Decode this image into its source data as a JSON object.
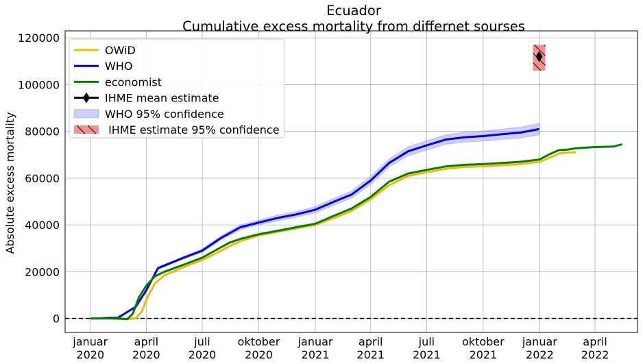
{
  "chart_data": {
    "type": "line",
    "title": "Ecuador",
    "subtitle": "Cumulative excess mortality from differnet sourses",
    "xlabel": "",
    "ylabel": "Absolute excess mortality",
    "xlim": [
      "2019-11-21",
      "2022-06-09"
    ],
    "ylim": [
      -6000,
      123000
    ],
    "grid": true,
    "legend_placement": "top-left",
    "x_ticks": [
      {
        "date": "2020-01-01",
        "line1": "januar",
        "line2": "2020"
      },
      {
        "date": "2020-04-01",
        "line1": "april",
        "line2": "2020"
      },
      {
        "date": "2020-07-01",
        "line1": "juli",
        "line2": "2020"
      },
      {
        "date": "2020-10-01",
        "line1": "oktober",
        "line2": "2020"
      },
      {
        "date": "2021-01-01",
        "line1": "januar",
        "line2": "2021"
      },
      {
        "date": "2021-04-01",
        "line1": "april",
        "line2": "2021"
      },
      {
        "date": "2021-07-01",
        "line1": "juli",
        "line2": "2021"
      },
      {
        "date": "2021-10-01",
        "line1": "oktober",
        "line2": "2021"
      },
      {
        "date": "2022-01-01",
        "line1": "januar",
        "line2": "2022"
      },
      {
        "date": "2022-04-01",
        "line1": "april",
        "line2": "2022"
      }
    ],
    "y_ticks": [
      0,
      20000,
      40000,
      60000,
      80000,
      100000,
      120000
    ],
    "zero_line": {
      "y": 0,
      "style": "dashed",
      "color": "#000000"
    },
    "series": [
      {
        "name": "OWiD",
        "color": "#f5b800",
        "points": [
          [
            "2020-01-01",
            0
          ],
          [
            "2020-01-30",
            0
          ],
          [
            "2020-02-20",
            -300
          ],
          [
            "2020-03-01",
            -300
          ],
          [
            "2020-03-15",
            100
          ],
          [
            "2020-03-25",
            3000
          ],
          [
            "2020-04-01",
            8000
          ],
          [
            "2020-04-15",
            15000
          ],
          [
            "2020-05-01",
            18500
          ],
          [
            "2020-06-01",
            22000
          ],
          [
            "2020-07-01",
            25000
          ],
          [
            "2020-08-01",
            29000
          ],
          [
            "2020-08-15",
            31000
          ],
          [
            "2020-09-01",
            33000
          ],
          [
            "2020-10-01",
            35500
          ],
          [
            "2020-11-01",
            37000
          ],
          [
            "2020-12-01",
            38500
          ],
          [
            "2021-01-01",
            40000
          ],
          [
            "2021-02-01",
            43000
          ],
          [
            "2021-03-01",
            46000
          ],
          [
            "2021-04-01",
            51000
          ],
          [
            "2021-05-01",
            57000
          ],
          [
            "2021-06-01",
            61000
          ],
          [
            "2021-07-01",
            62500
          ],
          [
            "2021-08-01",
            64000
          ],
          [
            "2021-09-01",
            64800
          ],
          [
            "2021-10-01",
            65000
          ],
          [
            "2021-11-01",
            65500
          ],
          [
            "2021-12-01",
            66000
          ],
          [
            "2022-01-01",
            67000
          ],
          [
            "2022-01-15",
            68500
          ],
          [
            "2022-02-01",
            70500
          ],
          [
            "2022-02-15",
            71000
          ],
          [
            "2022-03-01",
            71000
          ]
        ]
      },
      {
        "name": "WHO",
        "color": "#0000dd",
        "points": [
          [
            "2020-01-01",
            0
          ],
          [
            "2020-01-15",
            0
          ],
          [
            "2020-02-01",
            300
          ],
          [
            "2020-02-15",
            300
          ],
          [
            "2020-03-15",
            5000
          ],
          [
            "2020-04-01",
            12000
          ],
          [
            "2020-04-20",
            21500
          ],
          [
            "2020-06-01",
            26000
          ],
          [
            "2020-07-01",
            29000
          ],
          [
            "2020-08-01",
            34500
          ],
          [
            "2020-09-01",
            39000
          ],
          [
            "2020-10-01",
            41000
          ],
          [
            "2020-11-01",
            43000
          ],
          [
            "2020-12-01",
            44500
          ],
          [
            "2021-01-01",
            46500
          ],
          [
            "2021-02-01",
            50000
          ],
          [
            "2021-03-01",
            53000
          ],
          [
            "2021-04-01",
            59000
          ],
          [
            "2021-05-01",
            66500
          ],
          [
            "2021-06-01",
            71500
          ],
          [
            "2021-07-01",
            74000
          ],
          [
            "2021-08-01",
            76500
          ],
          [
            "2021-09-01",
            77500
          ],
          [
            "2021-10-01",
            78000
          ],
          [
            "2021-11-01",
            78800
          ],
          [
            "2021-12-01",
            79500
          ],
          [
            "2021-12-31",
            81000
          ]
        ]
      },
      {
        "name": "economist",
        "color": "#008000",
        "points": [
          [
            "2020-01-01",
            0
          ],
          [
            "2020-02-15",
            0
          ],
          [
            "2020-03-01",
            -300
          ],
          [
            "2020-03-10",
            2000
          ],
          [
            "2020-03-20",
            9000
          ],
          [
            "2020-04-01",
            14000
          ],
          [
            "2020-04-15",
            18000
          ],
          [
            "2020-05-01",
            20000
          ],
          [
            "2020-06-01",
            23000
          ],
          [
            "2020-07-01",
            26000
          ],
          [
            "2020-08-01",
            30500
          ],
          [
            "2020-08-15",
            32500
          ],
          [
            "2020-09-01",
            34000
          ],
          [
            "2020-10-01",
            36000
          ],
          [
            "2020-11-01",
            37500
          ],
          [
            "2020-12-01",
            39000
          ],
          [
            "2021-01-01",
            40500
          ],
          [
            "2021-02-01",
            44000
          ],
          [
            "2021-03-01",
            47000
          ],
          [
            "2021-04-01",
            52000
          ],
          [
            "2021-05-01",
            58500
          ],
          [
            "2021-06-01",
            62000
          ],
          [
            "2021-07-01",
            63500
          ],
          [
            "2021-08-01",
            65000
          ],
          [
            "2021-09-01",
            65700
          ],
          [
            "2021-10-01",
            66000
          ],
          [
            "2021-11-01",
            66500
          ],
          [
            "2021-12-01",
            67000
          ],
          [
            "2022-01-01",
            68000
          ],
          [
            "2022-01-15",
            70000
          ],
          [
            "2022-02-01",
            72000
          ],
          [
            "2022-02-15",
            72200
          ],
          [
            "2022-03-01",
            72800
          ],
          [
            "2022-04-01",
            73300
          ],
          [
            "2022-05-01",
            73500
          ],
          [
            "2022-05-15",
            74500
          ]
        ]
      }
    ],
    "who_band": {
      "name": "WHO 95% confidence",
      "color": "#8888ff",
      "points": [
        [
          "2020-01-01",
          0,
          0
        ],
        [
          "2020-01-15",
          0,
          0
        ],
        [
          "2020-02-01",
          300,
          300
        ],
        [
          "2020-02-15",
          300,
          300
        ],
        [
          "2020-03-15",
          4500,
          5500
        ],
        [
          "2020-04-01",
          11500,
          12500
        ],
        [
          "2020-04-20",
          21000,
          22000
        ],
        [
          "2020-06-01",
          25500,
          26500
        ],
        [
          "2020-07-01",
          28300,
          29700
        ],
        [
          "2020-08-01",
          33700,
          35300
        ],
        [
          "2020-09-01",
          38000,
          40000
        ],
        [
          "2020-10-01",
          40000,
          42000
        ],
        [
          "2020-11-01",
          41800,
          44200
        ],
        [
          "2020-12-01",
          43300,
          45700
        ],
        [
          "2021-01-01",
          45200,
          47800
        ],
        [
          "2021-02-01",
          48500,
          51500
        ],
        [
          "2021-03-01",
          51500,
          54500
        ],
        [
          "2021-04-01",
          57300,
          60700
        ],
        [
          "2021-05-01",
          64800,
          68200
        ],
        [
          "2021-06-01",
          69600,
          73400
        ],
        [
          "2021-07-01",
          72000,
          76000
        ],
        [
          "2021-08-01",
          74500,
          78500
        ],
        [
          "2021-09-01",
          75400,
          79600
        ],
        [
          "2021-10-01",
          75900,
          80100
        ],
        [
          "2021-11-01",
          76600,
          81000
        ],
        [
          "2021-12-01",
          77200,
          81800
        ],
        [
          "2021-12-31",
          78600,
          83400
        ]
      ]
    },
    "ihme": {
      "mean_label": "IHME mean estimate",
      "ci_label": " IHME estimate 95% confidence",
      "date": "2021-12-31",
      "mean": 112000,
      "low": 106000,
      "high": 117000,
      "marker_color": "#000000",
      "ci_color": "#f78f8f"
    },
    "legend": [
      {
        "label": "OWiD",
        "kind": "line",
        "color": "#f5b800"
      },
      {
        "label": "WHO",
        "kind": "line",
        "color": "#0000dd"
      },
      {
        "label": "economist",
        "kind": "line",
        "color": "#008000"
      },
      {
        "label": "IHME mean estimate",
        "kind": "marker",
        "color": "#000000"
      },
      {
        "label": "WHO 95% confidence",
        "kind": "band",
        "color": "#8888ff"
      },
      {
        "label": " IHME estimate 95% confidence",
        "kind": "hatch",
        "color": "#f78f8f"
      }
    ]
  }
}
